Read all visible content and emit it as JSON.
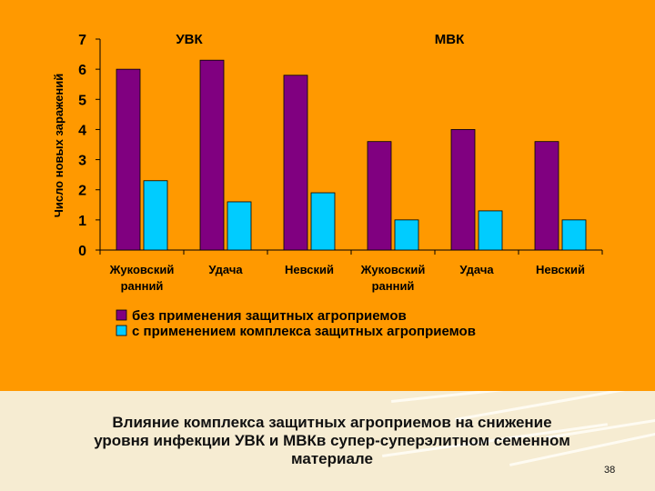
{
  "chart_data": {
    "type": "bar",
    "group_titles": [
      "УВК",
      "МВК"
    ],
    "categories": [
      "Жуковский ранний",
      "Удача",
      "Невский",
      "Жуковский ранний",
      "Удача",
      "Невский"
    ],
    "category_lines": [
      [
        "Жуковский",
        "ранний"
      ],
      [
        "Удача"
      ],
      [
        "Невский"
      ],
      [
        "Жуковский",
        "ранний"
      ],
      [
        "Удача"
      ],
      [
        "Невский"
      ]
    ],
    "ylabel": "Число новых заражений",
    "ylim": [
      0,
      7
    ],
    "yticks": [
      "0",
      "1",
      "2",
      "3",
      "4",
      "5",
      "6",
      "7"
    ],
    "series": [
      {
        "name": "без применения защитных агроприемов",
        "color": "#800080",
        "values": [
          6.0,
          6.3,
          5.8,
          3.6,
          4.0,
          3.6
        ]
      },
      {
        "name": "с применением комплекса защитных агроприемов",
        "color": "#00ccff",
        "values": [
          2.3,
          1.6,
          1.9,
          1.0,
          1.3,
          1.0
        ]
      }
    ],
    "grid": false,
    "legend_position": "bottom"
  },
  "caption": {
    "line1": "Влияние комплекса защитных агроприемов на снижение",
    "line2": "уровня инфекции УВК и МВКв супер-суперэлитном семенном",
    "line3": "материале"
  },
  "page_number": "38",
  "colors": {
    "background": "#ff9900",
    "footer": "#f6ecd2"
  }
}
